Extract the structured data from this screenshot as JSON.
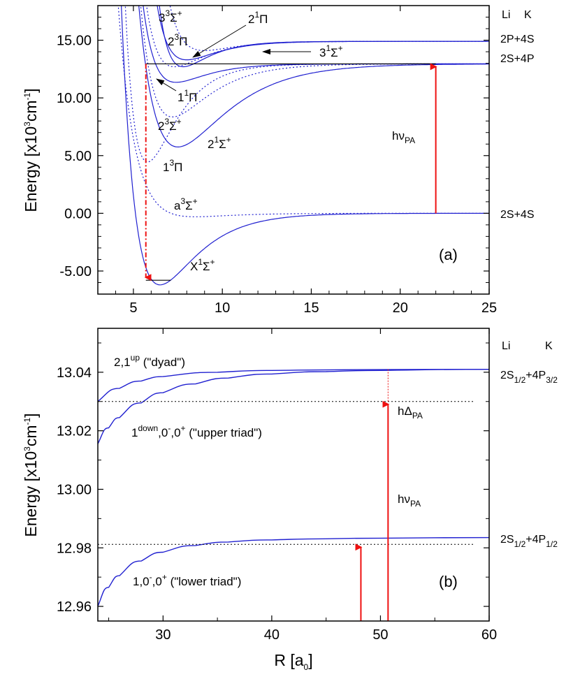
{
  "colors": {
    "curve": "#2020d0",
    "arrow": "#ee1111",
    "axis": "#000000",
    "level": "#000000"
  },
  "chart_data": [
    {
      "panel": "(a)",
      "type": "line",
      "xlim": [
        3,
        25
      ],
      "ylim": [
        -7,
        18
      ],
      "xticks": [
        "5",
        "10",
        "15",
        "20",
        "25"
      ],
      "yticks": [
        "-5.00",
        "0.00",
        "5.00",
        "10.00",
        "15.00"
      ],
      "ylabel": "Energy [x10",
      "ylabel_sup1": "3",
      "ylabel_mid": "cm",
      "ylabel_sup2": "-1",
      "ylabel_end": "]",
      "panel_label": "(a)",
      "header_li": "Li",
      "header_k": "K",
      "asymptotes": [
        {
          "label": "2P+4S",
          "y": 14.9
        },
        {
          "label": "2S+4P",
          "y": 12.95
        },
        {
          "label": "2S+4S",
          "y": 0.0
        }
      ],
      "series": [
        {
          "name": "X1Σ+",
          "style": "solid",
          "De": 6.2,
          "re": 6.5,
          "a": 0.5,
          "asym": 0.0
        },
        {
          "name": "a3Σ+",
          "style": "dotted",
          "De": 0.3,
          "re": 8.5,
          "a": 0.5,
          "asym": 0.0
        },
        {
          "name": "13Π",
          "style": "dotted",
          "De": 8.5,
          "re": 5.8,
          "a": 0.65,
          "asym": 12.95
        },
        {
          "name": "21Σ+",
          "style": "solid",
          "De": 7.2,
          "re": 7.5,
          "a": 0.38,
          "asym": 12.95
        },
        {
          "name": "23Σ+",
          "style": "dotted",
          "De": 4.6,
          "re": 7.2,
          "a": 0.5,
          "asym": 12.95
        },
        {
          "name": "11Π",
          "style": "solid",
          "De": 1.6,
          "re": 7.4,
          "a": 0.6,
          "asym": 12.95
        },
        {
          "name": "31Σ+",
          "style": "solid",
          "De": 2.2,
          "re": 7.8,
          "a": 0.7,
          "asym": 14.9
        },
        {
          "name": "21Π",
          "style": "solid",
          "De": 1.6,
          "re": 8.0,
          "a": 0.6,
          "asym": 14.9
        },
        {
          "name": "23Π",
          "style": "dotted",
          "De": 2.2,
          "re": 7.3,
          "a": 0.6,
          "asym": 14.9
        },
        {
          "name": "33Σ+",
          "style": "dotted",
          "De": 0.8,
          "re": 9.0,
          "a": 0.6,
          "asym": 14.9
        }
      ],
      "labels": [
        {
          "t": "3",
          "s": "3",
          "t2": "Σ",
          "s2": "+"
        },
        {
          "t": "2",
          "s": "1",
          "t2": "Π",
          "s2": ""
        },
        {
          "t": "2",
          "s": "3",
          "t2": "Π",
          "s2": ""
        },
        {
          "t": "3",
          "s": "1",
          "t2": "Σ",
          "s2": "+"
        },
        {
          "t": "1",
          "s": "1",
          "t2": "Π",
          "s2": ""
        },
        {
          "t": "2",
          "s": "3",
          "t2": "Σ",
          "s2": "+"
        },
        {
          "t": "2",
          "s": "1",
          "t2": "Σ",
          "s2": "+"
        },
        {
          "t": "1",
          "s": "3",
          "t2": "Π",
          "s2": ""
        },
        {
          "t": "a",
          "s": "3",
          "t2": "Σ",
          "s2": "+"
        },
        {
          "t": "X",
          "s": "1",
          "t2": "Σ",
          "s2": "+"
        }
      ],
      "hv_label": "hν",
      "hv_sub": "PA",
      "pa_level_y": 12.95,
      "pa_arrow_x": 22.0,
      "decay_x": 5.7,
      "ground_level_y": -5.8
    },
    {
      "panel": "(b)",
      "type": "line",
      "xlim": [
        24,
        60
      ],
      "ylim": [
        12.955,
        13.055
      ],
      "xticks": [
        "30",
        "40",
        "50",
        "60"
      ],
      "yticks": [
        "12.96",
        "12.98",
        "13.00",
        "13.02",
        "13.04"
      ],
      "xlabel": "R [a",
      "xlabel_sub": "0",
      "xlabel_end": "]",
      "ylabel": "Energy [x10",
      "ylabel_sup1": "3",
      "ylabel_mid": "cm",
      "ylabel_sup2": "-1",
      "ylabel_end": "]",
      "panel_label": "(b)",
      "header_li": "Li",
      "header_k": "K",
      "asymptote_upper": {
        "y": 13.041,
        "t": "2S",
        "s": "1/2",
        "t2": "+4P",
        "s2": "3/2"
      },
      "asymptote_lower": {
        "y": 12.9835,
        "t": "2S",
        "s": "1/2",
        "t2": "+4P",
        "s2": "1/2"
      },
      "series": [
        {
          "name": "2,1up (dyad)",
          "C": 420000.0,
          "asym": 13.041,
          "points": [
            [
              24,
              13.03
            ],
            [
              26,
              13.0345
            ],
            [
              28,
              13.037
            ],
            [
              30,
              13.0385
            ],
            [
              35,
              13.04
            ],
            [
              40,
              13.0406
            ],
            [
              50,
              13.0409
            ],
            [
              60,
              13.041
            ]
          ]
        },
        {
          "name": "1down,0-,0+ (upper triad)",
          "points": [
            [
              24,
              13.0155
            ],
            [
              25,
              13.021
            ],
            [
              26,
              13.0245
            ],
            [
              28,
              13.0295
            ],
            [
              30,
              13.033
            ],
            [
              33,
              13.036
            ],
            [
              36,
              13.038
            ],
            [
              40,
              13.0394
            ],
            [
              45,
              13.0402
            ],
            [
              50,
              13.0406
            ],
            [
              60,
              13.041
            ]
          ]
        },
        {
          "name": "1,0-,0+ (lower triad)",
          "points": [
            [
              24,
              12.96
            ],
            [
              25,
              12.9665
            ],
            [
              26,
              12.9705
            ],
            [
              28,
              12.9755
            ],
            [
              30,
              12.9785
            ],
            [
              33,
              12.9808
            ],
            [
              36,
              12.982
            ],
            [
              40,
              12.9827
            ],
            [
              45,
              12.9831
            ],
            [
              50,
              12.9833
            ],
            [
              60,
              12.9835
            ]
          ]
        }
      ],
      "text_dyad": "2,1",
      "text_dyad_sup": "up",
      "text_dyad_end": " (\"dyad\")",
      "text_upper": "1",
      "text_upper_sup": "down",
      "text_upper_mid": ",0",
      "text_upper_sup2": "-",
      "text_upper_mid2": ",0",
      "text_upper_sup3": "+",
      "text_upper_end": " (\"upper triad\")",
      "text_lower": "1,0",
      "text_lower_sup": "-",
      "text_lower_mid": ",0",
      "text_lower_sup2": "+",
      "text_lower_end": " (\"lower triad\")",
      "hdelta_label": "hΔ",
      "hdelta_sub": "PA",
      "hv_label": "hν",
      "hv_sub": "PA",
      "level_upper_y": 13.03,
      "level_lower_y": 12.9812,
      "arrow1_x": 48.2,
      "arrow2_x": 50.7
    }
  ]
}
